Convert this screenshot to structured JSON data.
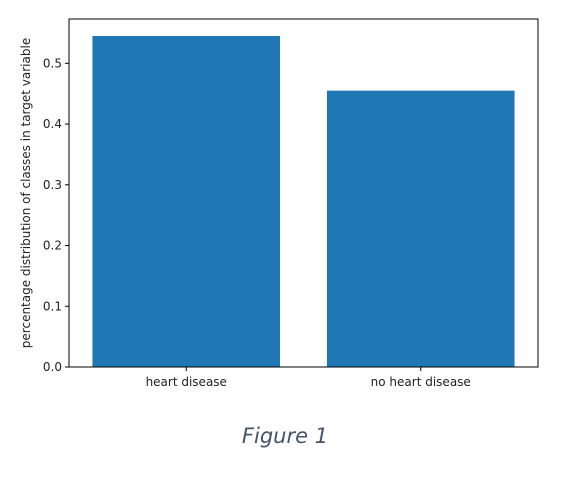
{
  "caption": "Figure 1",
  "chart_data": {
    "type": "bar",
    "categories": [
      "heart disease",
      "no heart disease"
    ],
    "values": [
      0.545,
      0.455
    ],
    "title": "",
    "xlabel": "",
    "ylabel": "percentage distribution of classes in target variable",
    "ylim": [
      0,
      0.573
    ],
    "yticks": [
      0.0,
      0.1,
      0.2,
      0.3,
      0.4,
      0.5
    ],
    "ytick_labels": [
      "0.0",
      "0.1",
      "0.2",
      "0.3",
      "0.4",
      "0.5"
    ],
    "bar_color": "#1f77b4",
    "grid": false
  }
}
